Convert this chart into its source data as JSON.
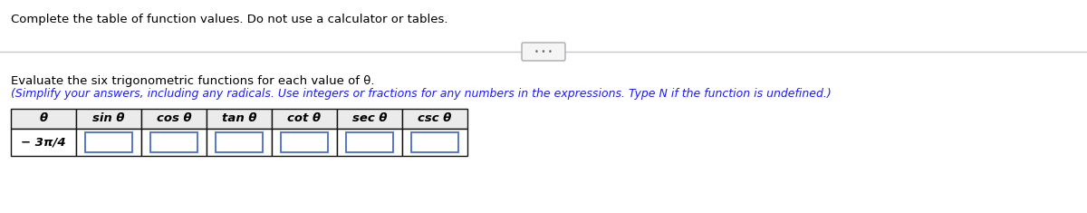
{
  "title_text": "Complete the table of function values. Do not use a calculator or tables.",
  "instruction_line1": "Evaluate the six trigonometric functions for each value of θ.",
  "instruction_line2": "(Simplify your answers, including any radicals. Use integers or fractions for any numbers in the expressions. Type N if the function is undefined.)",
  "col_headers": [
    "θ",
    "sin θ",
    "cos θ",
    "tan θ",
    "cot θ",
    "sec θ",
    "csc θ"
  ],
  "row_label": "− 3π/4",
  "background_color": "#ffffff",
  "table_border_color": "#111111",
  "input_box_color": "#4a70c4",
  "divider_color": "#c0c8d8",
  "title_fontsize": 9.5,
  "instruction_fontsize": 9.5,
  "header_fontsize": 9.5,
  "row_label_fontsize": 9.5
}
